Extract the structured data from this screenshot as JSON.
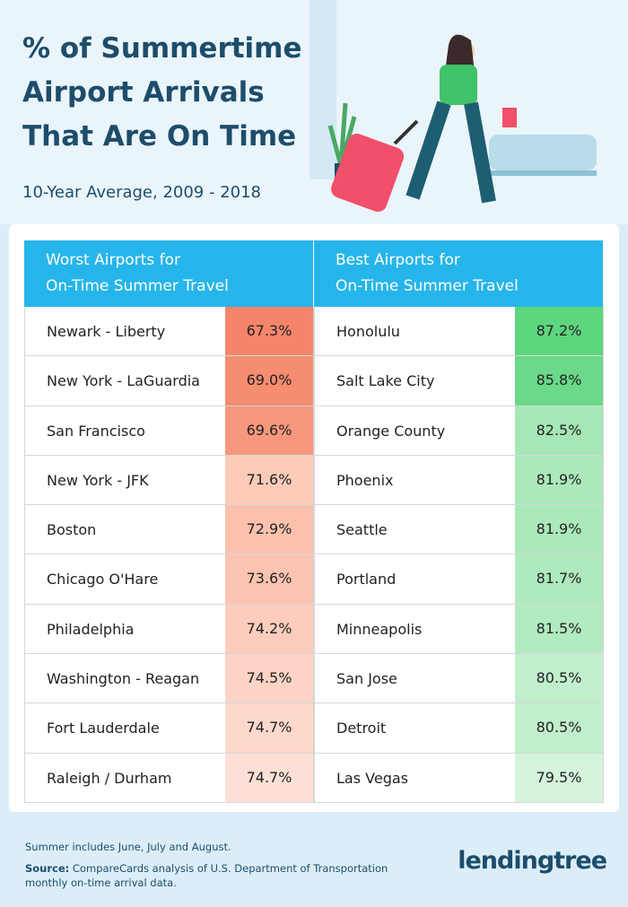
{
  "header": {
    "title_lines": [
      "% of Summertime",
      "Airport Arrivals",
      "That Are On Time"
    ],
    "subtitle": "10-Year Average, 2009 - 2018"
  },
  "table": {
    "columns": [
      {
        "heading": [
          "Worst Airports for",
          "On-Time Summer Travel"
        ],
        "rows": [
          [
            "Newark - Liberty",
            "67.3%"
          ],
          [
            "New York - LaGuardia",
            "69.0%"
          ],
          [
            "San Francisco",
            "69.6%"
          ],
          [
            "New York - JFK",
            "71.6%"
          ],
          [
            "Boston",
            "72.9%"
          ],
          [
            "Chicago O'Hare",
            "73.6%"
          ],
          [
            "Philadelphia",
            "74.2%"
          ],
          [
            "Washington - Reagan",
            "74.5%"
          ],
          [
            "Fort Lauderdale",
            "74.7%"
          ],
          [
            "Raleigh / Durham",
            "74.7%"
          ]
        ]
      },
      {
        "heading": [
          "Best Airports for",
          "On-Time Summer Travel"
        ],
        "rows": [
          [
            "Honolulu",
            "87.2%"
          ],
          [
            "Salt Lake City",
            "85.8%"
          ],
          [
            "Orange County",
            "82.5%"
          ],
          [
            "Phoenix",
            "81.9%"
          ],
          [
            "Seattle",
            "81.9%"
          ],
          [
            "Portland",
            "81.7%"
          ],
          [
            "Minneapolis",
            "81.5%"
          ],
          [
            "San Jose",
            "80.5%"
          ],
          [
            "Detroit",
            "80.5%"
          ],
          [
            "Las Vegas",
            "79.5%"
          ]
        ]
      }
    ]
  },
  "footer": {
    "note": "Summer includes June, July and August.",
    "source": {
      "label": "Source:",
      "text": "CompareCards analysis of U.S. Department of Transportation monthly on-time arrival data."
    },
    "logo": "lendingtree"
  }
}
